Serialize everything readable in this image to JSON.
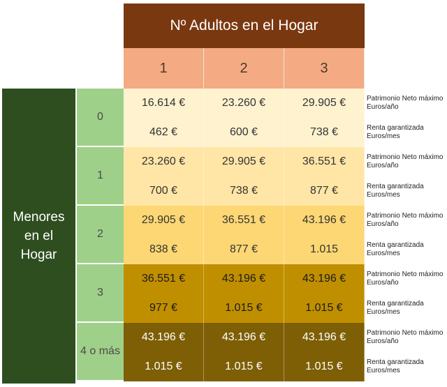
{
  "header": {
    "title": "Nº Adultos en el Hogar"
  },
  "adults": [
    "1",
    "2",
    "3"
  ],
  "side_label": "Menores en el Hogar",
  "labels": {
    "patrimonio": "Patrimonio Neto máximo Euros/año",
    "renta": "Renta garantizada Euros/mes"
  },
  "rows": [
    {
      "minors": "0",
      "color": "#fff2cf",
      "text": "#333333",
      "patrimonio": [
        "16.614 €",
        "23.260 €",
        "29.905 €"
      ],
      "renta": [
        "462 €",
        "600 €",
        "738 €"
      ]
    },
    {
      "minors": "1",
      "color": "#ffe6a6",
      "text": "#333333",
      "patrimonio": [
        "23.260 €",
        "29.905 €",
        "36.551 €"
      ],
      "renta": [
        "700 €",
        "738 €",
        "877 €"
      ]
    },
    {
      "minors": "2",
      "color": "#fdd773",
      "text": "#333333",
      "patrimonio": [
        "29.905 €",
        "36.551 €",
        "43.196 €"
      ],
      "renta": [
        "838 €",
        "877 €",
        "1.015"
      ]
    },
    {
      "minors": "3",
      "color": "#bf8f00",
      "text": "#1a1a1a",
      "patrimonio": [
        "36.551 €",
        "43.196 €",
        "43.196 €"
      ],
      "renta": [
        "977 €",
        "1.015 €",
        "1.015 €"
      ]
    },
    {
      "minors": "4 o más",
      "color": "#7e5f05",
      "text": "#ffffff",
      "patrimonio": [
        "43.196 €",
        "43.196 €",
        "43.196 €"
      ],
      "renta": [
        "1.015 €",
        "1.015 €",
        "1.015 €"
      ]
    }
  ]
}
